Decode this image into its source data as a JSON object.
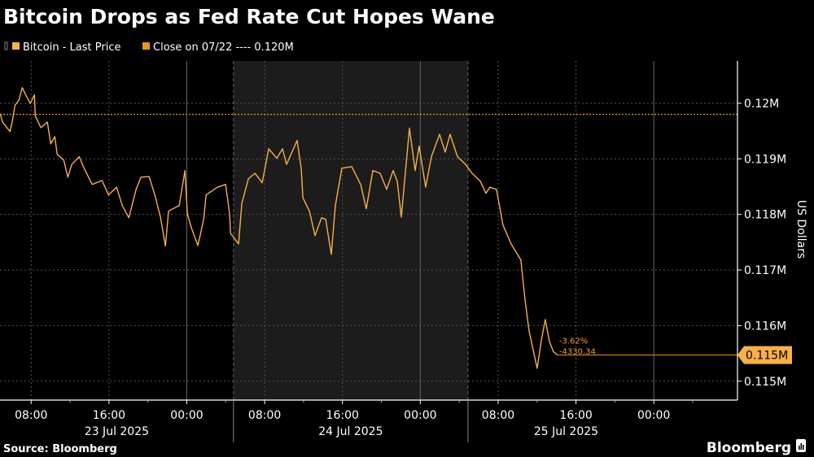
{
  "chart_data": {
    "type": "line",
    "title": "Bitcoin Drops as Fed Rate Cut Hopes Wane",
    "ylabel": "US Dollars",
    "x_unit": "hours since 23 Jul 2025 00:00",
    "xlim": [
      4.8,
      80.6
    ],
    "ylim": [
      114660,
      120760
    ],
    "legend": [
      {
        "label": "Bitcoin - Last Price",
        "color": "#f7b04a"
      },
      {
        "label": "Close on 07/22 ---- 0.120M",
        "color": "#f0921e"
      }
    ],
    "legend_position": "top-left",
    "reference_close": 119800,
    "last_price_label": "0.115M",
    "last_price": 115470,
    "annotation_pct": "-3.62%",
    "annotation_abs": "-4330.34",
    "y_ticks": [
      {
        "value": 120000,
        "label": "0.12M"
      },
      {
        "value": 119000,
        "label": "0.119M"
      },
      {
        "value": 118000,
        "label": "0.118M"
      },
      {
        "value": 117000,
        "label": "0.117M"
      },
      {
        "value": 116000,
        "label": "0.116M"
      },
      {
        "value": 115000,
        "label": "0.115M"
      }
    ],
    "x_ticks": [
      {
        "value": 8,
        "label": "08:00"
      },
      {
        "value": 16,
        "label": "16:00"
      },
      {
        "value": 24,
        "label": "00:00"
      },
      {
        "value": 32,
        "label": "08:00"
      },
      {
        "value": 40,
        "label": "16:00"
      },
      {
        "value": 48,
        "label": "00:00"
      },
      {
        "value": 56,
        "label": "08:00"
      },
      {
        "value": 64,
        "label": "16:00"
      },
      {
        "value": 72,
        "label": "00:00"
      }
    ],
    "day_boundaries": [
      28.8,
      52.9
    ],
    "day_labels": [
      "23 Jul 2025",
      "24 Jul 2025",
      "25 Jul 2025"
    ],
    "grid": true,
    "series": [
      {
        "name": "Bitcoin - Last Price",
        "x": [
          4.82,
          5.07,
          5.83,
          6.08,
          6.33,
          6.75,
          7.08,
          7.5,
          7.92,
          8.34,
          8.42,
          9.01,
          9.67,
          10.01,
          10.43,
          10.68,
          11.35,
          11.77,
          12.18,
          12.94,
          13.44,
          14.27,
          15.28,
          15.95,
          16.78,
          17.37,
          18.04,
          18.79,
          19.29,
          20.13,
          20.71,
          21.3,
          21.8,
          22.13,
          23.22,
          23.81,
          24.06,
          24.47,
          25.14,
          25.73,
          25.98,
          27.15,
          27.99,
          28.4,
          28.49,
          29.32,
          29.66,
          30.33,
          31.0,
          31.75,
          32.42,
          33.25,
          33.84,
          34.25,
          35.34,
          35.76,
          35.93,
          36.6,
          37.18,
          37.85,
          38.27,
          38.85,
          39.27,
          39.94,
          40.95,
          41.87,
          42.45,
          43.12,
          43.87,
          44.54,
          45.21,
          45.63,
          46.05,
          46.46,
          46.88,
          47.47,
          47.88,
          48.55,
          49.14,
          49.98,
          50.56,
          51.06,
          51.82,
          52.65,
          53.32,
          54.16,
          54.74,
          55.16,
          55.83,
          56.5,
          57.33,
          58.34,
          58.75,
          59.17,
          59.59,
          60.01,
          60.43,
          60.85,
          61.26,
          61.68,
          62.1
        ],
        "values": [
          119810,
          119660,
          119490,
          119690,
          119960,
          120060,
          120280,
          120130,
          120000,
          120150,
          119770,
          119560,
          119660,
          119270,
          119400,
          119080,
          118980,
          118670,
          118900,
          119040,
          118830,
          118540,
          118610,
          118350,
          118490,
          118160,
          117940,
          118450,
          118670,
          118680,
          118350,
          117950,
          117430,
          118060,
          118160,
          118790,
          118010,
          117760,
          117440,
          117910,
          118350,
          118490,
          118540,
          118010,
          117660,
          117470,
          118200,
          118640,
          118740,
          118570,
          119180,
          119010,
          119180,
          118900,
          119330,
          118830,
          118300,
          118060,
          117620,
          117940,
          117910,
          117280,
          118160,
          118830,
          118860,
          118540,
          118100,
          118790,
          118740,
          118450,
          118790,
          118600,
          117950,
          118740,
          119550,
          118790,
          119230,
          118490,
          119040,
          119440,
          119120,
          119440,
          119040,
          118900,
          118740,
          118600,
          118380,
          118490,
          118450,
          117810,
          117470,
          117180,
          116490,
          115910,
          115570,
          115230,
          115720,
          116110,
          115720,
          115530,
          115470
        ]
      }
    ]
  },
  "source": "Source: Bloomberg",
  "brand": "Bloomberg"
}
